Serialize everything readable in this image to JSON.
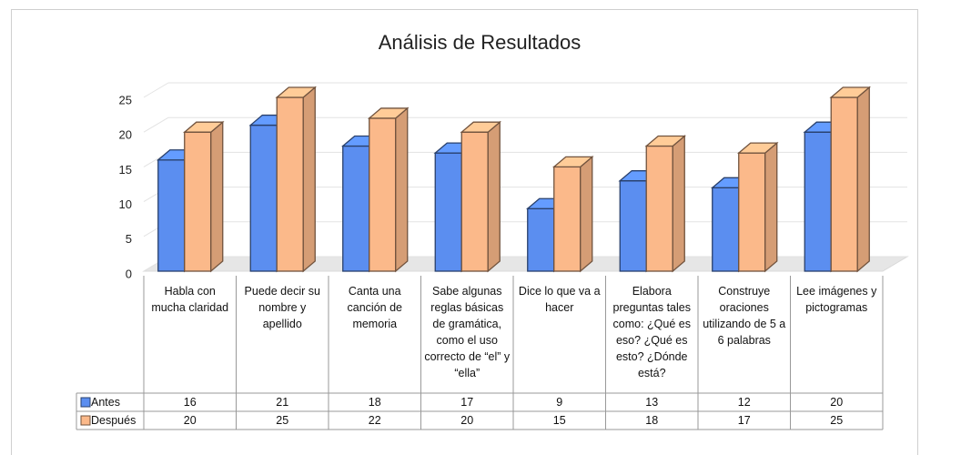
{
  "chart_data": {
    "type": "bar3d",
    "title": "Análisis de Resultados",
    "categories": [
      "Habla con mucha claridad",
      "Puede decir su nombre y apellido",
      "Canta una canción de memoria",
      "Sabe algunas reglas básicas de gramática, como el uso correcto de “el” y “ella”",
      "Dice lo que va a hacer",
      "Elabora preguntas tales como: ¿Qué es eso? ¿Qué es esto? ¿Dónde está?",
      "Construye oraciones utilizando de 5 a 6 palabras",
      "Lee imágenes y pictogramas"
    ],
    "series": [
      {
        "name": "Antes",
        "color": "#5b8ef0",
        "values": [
          16,
          21,
          18,
          17,
          9,
          13,
          12,
          20
        ]
      },
      {
        "name": "Después",
        "color": "#fbb98a",
        "values": [
          20,
          25,
          22,
          20,
          15,
          18,
          17,
          25
        ]
      }
    ],
    "ylim": [
      0,
      25
    ],
    "yticks": [
      0,
      5,
      10,
      15,
      20,
      25
    ],
    "grid": true
  }
}
